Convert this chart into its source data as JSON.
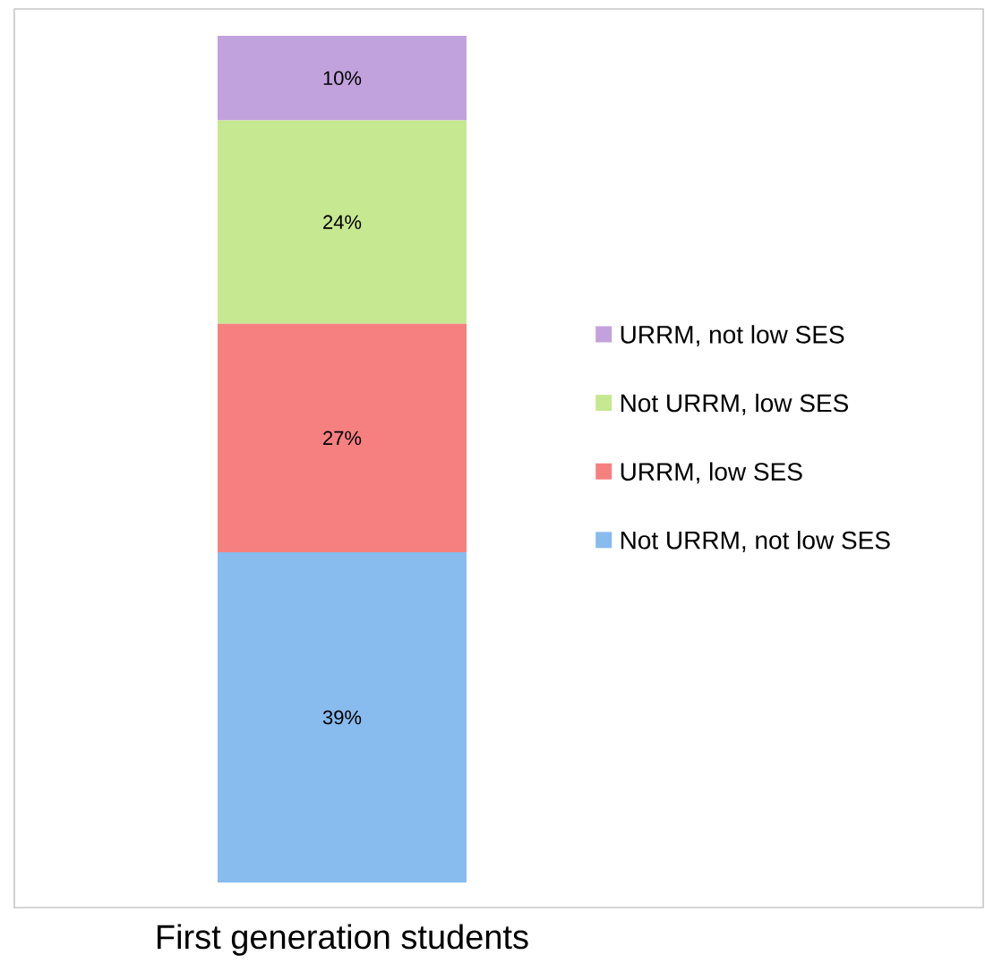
{
  "chart_data": {
    "type": "bar",
    "stacked": true,
    "categories": [
      "First generation students"
    ],
    "series": [
      {
        "name": "Not URRM, not low SES",
        "color": "#88bbee",
        "values": [
          39
        ],
        "value_labels": [
          "39%"
        ]
      },
      {
        "name": "URRM, low SES",
        "color": "#f68080",
        "values": [
          27
        ],
        "value_labels": [
          "27%"
        ]
      },
      {
        "name": "Not URRM, low SES",
        "color": "#c6e890",
        "values": [
          24
        ],
        "value_labels": [
          "24%"
        ]
      },
      {
        "name": "URRM, not low SES",
        "color": "#c2a2dc",
        "values": [
          10
        ],
        "value_labels": [
          "10%"
        ]
      }
    ],
    "tick_labels": "x",
    "legend": "right"
  }
}
